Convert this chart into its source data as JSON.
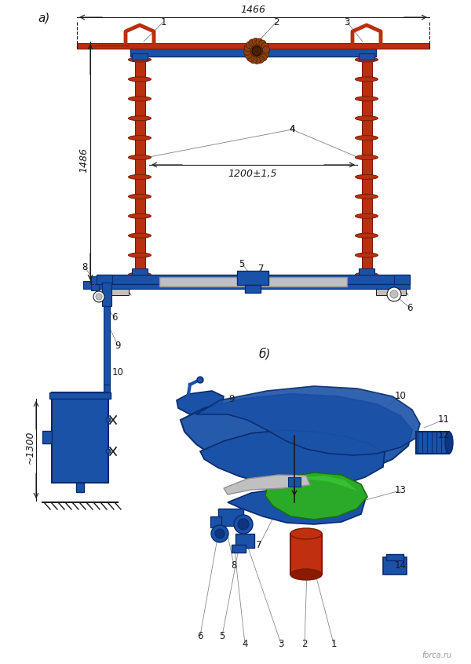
{
  "title_a": "а)",
  "title_b": "б)",
  "watermark": "forca.ru",
  "dim_1466": "1466",
  "dim_1486": "1486",
  "dim_1200": "1200±1,5",
  "dim_1300": "~1300",
  "bg_color": "#ffffff",
  "blue": "#1a52a8",
  "dark_blue": "#0a2a6e",
  "red_brown": "#b83010",
  "gray": "#909090",
  "light_gray": "#c0c0c0",
  "green": "#2aaa28",
  "line_color": "#1a1a1a",
  "label_color": "#1a1a1a"
}
